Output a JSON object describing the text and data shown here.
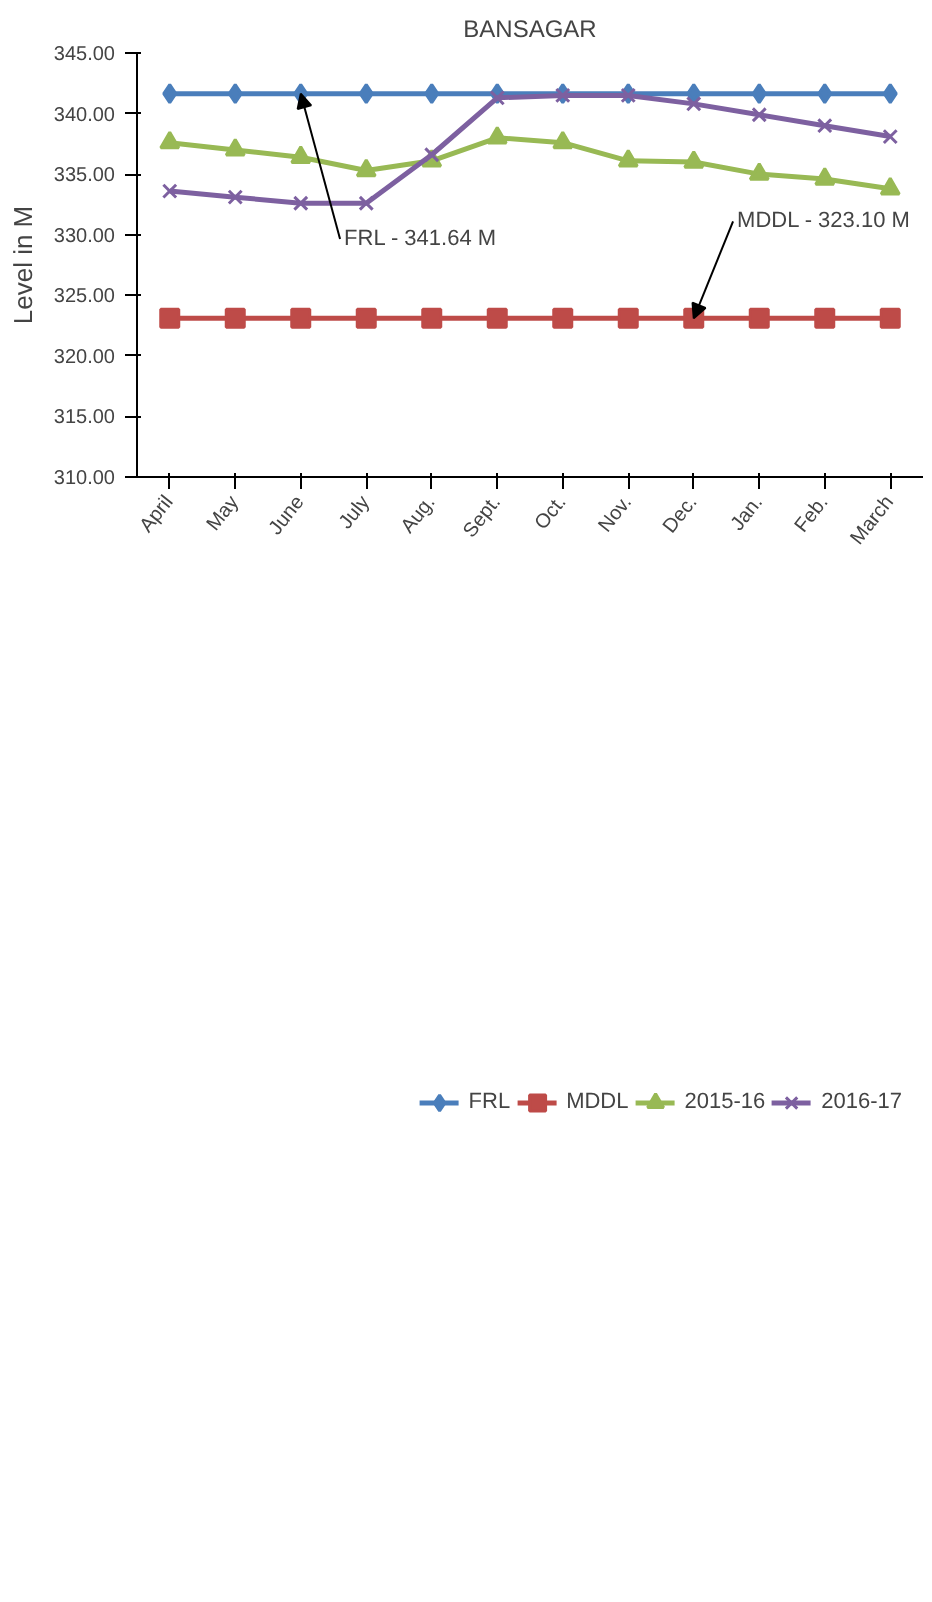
{
  "chart_data": {
    "type": "line",
    "title": "BANSAGAR",
    "ylabel": "Level in M",
    "categories": [
      "April",
      "May",
      "June",
      "July",
      "Aug.",
      "Sept.",
      "Oct.",
      "Nov.",
      "Dec.",
      "Jan.",
      "Feb.",
      "March"
    ],
    "series": [
      {
        "name": "FRL",
        "color": "#4a7ebb",
        "marker": "diamond",
        "values": [
          341.64,
          341.64,
          341.64,
          341.64,
          341.64,
          341.64,
          341.64,
          341.64,
          341.64,
          341.64,
          341.64,
          341.64
        ]
      },
      {
        "name": "MDDL",
        "color": "#be4b48",
        "marker": "square",
        "values": [
          323.1,
          323.1,
          323.1,
          323.1,
          323.1,
          323.1,
          323.1,
          323.1,
          323.1,
          323.1,
          323.1,
          323.1
        ]
      },
      {
        "name": "2015-16",
        "color": "#98b954",
        "marker": "triangle",
        "values": [
          337.6,
          337.0,
          336.4,
          335.3,
          336.1,
          338.0,
          337.6,
          336.1,
          336.0,
          335.0,
          334.6,
          333.8
        ]
      },
      {
        "name": "2016-17",
        "color": "#7d60a0",
        "marker": "cross",
        "values": [
          333.6,
          333.1,
          332.6,
          332.6,
          336.6,
          341.3,
          341.5,
          341.5,
          340.8,
          339.9,
          339.0,
          338.1
        ]
      }
    ],
    "ylim": [
      310,
      345
    ],
    "yticks": [
      {
        "value": 310,
        "label": "310.00"
      },
      {
        "value": 315,
        "label": "315.00"
      },
      {
        "value": 320,
        "label": "320.00"
      },
      {
        "value": 325,
        "label": "325.00"
      },
      {
        "value": 330,
        "label": "330.00"
      },
      {
        "value": 335,
        "label": "335.00"
      },
      {
        "value": 340,
        "label": "340.00"
      },
      {
        "value": 345,
        "label": "345.00"
      }
    ],
    "annotations": [
      {
        "text": "FRL - 341.64 M",
        "x": "June",
        "y": 341.64
      },
      {
        "text": "MDDL - 323.10 M",
        "x": "Dec.",
        "y": 323.1
      }
    ],
    "grid": false,
    "legend": "bottom",
    "line_style": "solid"
  }
}
